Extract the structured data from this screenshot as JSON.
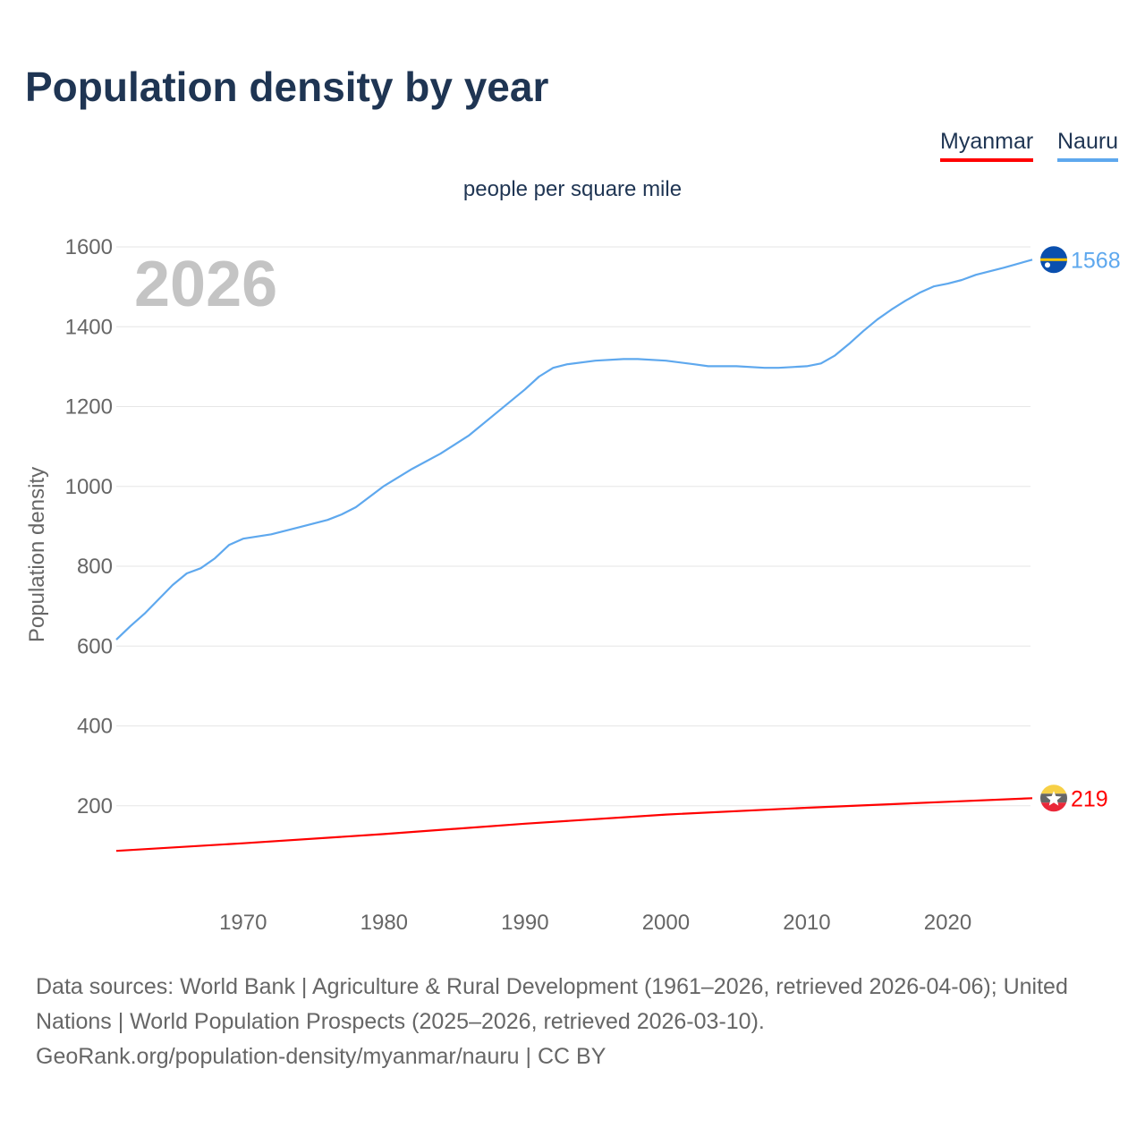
{
  "title": "Population density by year",
  "legend": [
    {
      "label": "Myanmar",
      "color": "#ff0000"
    },
    {
      "label": "Nauru",
      "color": "#5ea8ee"
    }
  ],
  "chart_data": {
    "type": "line",
    "title": "Population density by year",
    "subtitle": "people per square mile",
    "ylabel": "Population density",
    "xlabel": "",
    "year_watermark": "2026",
    "xlim": [
      1961,
      2026
    ],
    "ylim": [
      0,
      1600
    ],
    "x_ticks": [
      1970,
      1980,
      1990,
      2000,
      2010,
      2020
    ],
    "y_ticks": [
      200,
      400,
      600,
      800,
      1000,
      1200,
      1400,
      1600
    ],
    "grid": true,
    "legend_placement": "top-right",
    "series": [
      {
        "name": "Myanmar",
        "color": "#ff0000",
        "end_label": "219",
        "flag": "myanmar-flag-icon",
        "x": [
          1961,
          1970,
          1980,
          1990,
          2000,
          2010,
          2020,
          2026
        ],
        "values": [
          87,
          106,
          129,
          155,
          178,
          195,
          210,
          219
        ]
      },
      {
        "name": "Nauru",
        "color": "#5ea8ee",
        "end_label": "1568",
        "flag": "nauru-flag-icon",
        "x": [
          1961,
          1962,
          1963,
          1964,
          1965,
          1966,
          1967,
          1968,
          1969,
          1970,
          1972,
          1974,
          1976,
          1977,
          1978,
          1980,
          1982,
          1984,
          1986,
          1988,
          1990,
          1991,
          1992,
          1993,
          1995,
          1997,
          1998,
          2000,
          2002,
          2003,
          2005,
          2007,
          2008,
          2009,
          2010,
          2011,
          2012,
          2013,
          2014,
          2015,
          2016,
          2017,
          2018,
          2019,
          2020,
          2021,
          2022,
          2024,
          2026
        ],
        "values": [
          616,
          650,
          681,
          717,
          753,
          782,
          795,
          820,
          853,
          869,
          880,
          898,
          916,
          930,
          948,
          1001,
          1044,
          1082,
          1127,
          1185,
          1243,
          1275,
          1297,
          1306,
          1315,
          1319,
          1319,
          1315,
          1306,
          1301,
          1301,
          1297,
          1297,
          1299,
          1301,
          1308,
          1328,
          1357,
          1389,
          1418,
          1443,
          1465,
          1485,
          1501,
          1508,
          1517,
          1530,
          1548,
          1568
        ]
      }
    ]
  },
  "source": {
    "line1": "Data sources: World Bank | Agriculture & Rural Development (1961–2026, retrieved 2026-04-06); United Nations | World Population Prospects (2025–2026, retrieved 2026-03-10).",
    "line2": "GeoRank.org/population-density/myanmar/nauru | CC BY"
  }
}
